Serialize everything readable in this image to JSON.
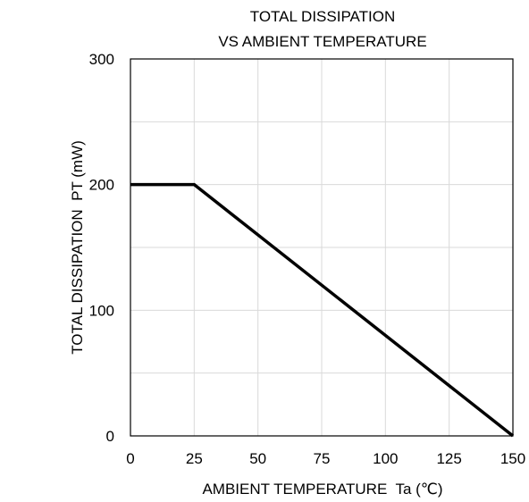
{
  "chart_data": {
    "type": "line",
    "title_lines": [
      "TOTAL DISSIPATION",
      "VS AMBIENT TEMPERATURE"
    ],
    "xlabel": "AMBIENT TEMPERATURE  Ta (℃)",
    "ylabel": "TOTAL DISSIPATION  PT (mW)",
    "xlim": [
      0,
      150
    ],
    "ylim": [
      0,
      300
    ],
    "x_ticks": [
      0,
      25,
      50,
      75,
      100,
      125,
      150
    ],
    "x_tick_labels": [
      "0",
      "25",
      "50",
      "75",
      "100",
      "125",
      "150"
    ],
    "y_ticks": [
      0,
      100,
      200,
      300
    ],
    "y_tick_labels": [
      "0",
      "100",
      "200",
      "300"
    ],
    "minor_grid": {
      "x_step": 25,
      "y_step": 50
    },
    "grid": true,
    "series": [
      {
        "x": [
          0,
          25,
          150
        ],
        "y": [
          200,
          200,
          0
        ],
        "color": "#000000"
      }
    ]
  }
}
